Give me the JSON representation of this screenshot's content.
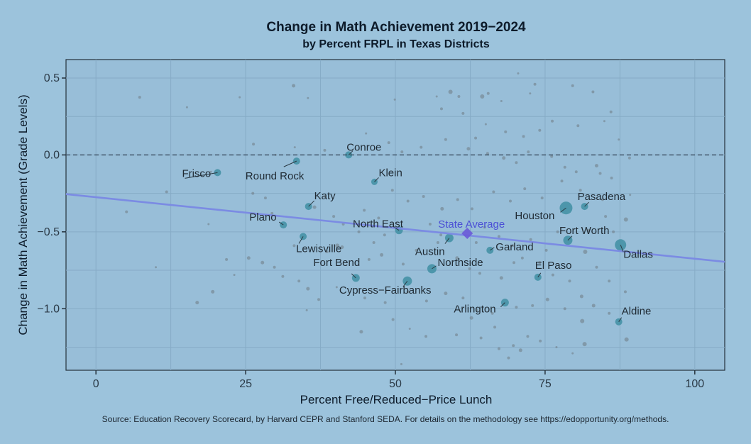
{
  "chart_data": {
    "type": "scatter",
    "title": "Change in Math Achievement 2019−2024",
    "subtitle": "by Percent FRPL in Texas Districts",
    "xlabel": "Percent Free/Reduced−Price Lunch",
    "ylabel": "Change in Math Achievement (Grade Levels)",
    "xlim": [
      -5,
      105
    ],
    "ylim": [
      -1.4,
      0.62
    ],
    "xticks": [
      0,
      25,
      50,
      75,
      100
    ],
    "xtick_labels": [
      "0",
      "25",
      "50",
      "75",
      "100"
    ],
    "yticks": [
      0.5,
      0.0,
      -0.5,
      -1.0
    ],
    "ytick_labels": [
      "0.5",
      "0.0",
      "−0.5",
      "−1.0"
    ],
    "reference_line_y": 0.0,
    "trend_line": {
      "x": [
        -5,
        105
      ],
      "y": [
        -0.255,
        -0.695
      ]
    },
    "state_average": {
      "label": "State Average",
      "x": 62,
      "y": -0.51
    },
    "highlighted_districts": [
      {
        "name": "Frisco",
        "x": 20.3,
        "y": -0.115,
        "size": 5
      },
      {
        "name": "Round Rock",
        "x": 33.5,
        "y": -0.04,
        "size": 5
      },
      {
        "name": "Conroe",
        "x": 42.2,
        "y": 0.0,
        "size": 5
      },
      {
        "name": "Klein",
        "x": 46.5,
        "y": -0.175,
        "size": 4.5
      },
      {
        "name": "Katy",
        "x": 35.5,
        "y": -0.335,
        "size": 5
      },
      {
        "name": "Plano",
        "x": 31.3,
        "y": -0.455,
        "size": 5
      },
      {
        "name": "Lewisville",
        "x": 34.6,
        "y": -0.53,
        "size": 5
      },
      {
        "name": "North East",
        "x": 50.6,
        "y": -0.49,
        "size": 5.5
      },
      {
        "name": "Austin",
        "x": 59.0,
        "y": -0.54,
        "size": 6
      },
      {
        "name": "Houston",
        "x": 78.5,
        "y": -0.345,
        "size": 9
      },
      {
        "name": "Pasadena",
        "x": 81.6,
        "y": -0.335,
        "size": 5
      },
      {
        "name": "Fort Worth",
        "x": 78.8,
        "y": -0.555,
        "size": 6.5
      },
      {
        "name": "Dallas",
        "x": 87.6,
        "y": -0.585,
        "size": 8
      },
      {
        "name": "Garland",
        "x": 65.8,
        "y": -0.62,
        "size": 5
      },
      {
        "name": "Northside",
        "x": 56.1,
        "y": -0.74,
        "size": 6.5
      },
      {
        "name": "Fort Bend",
        "x": 43.4,
        "y": -0.8,
        "size": 5.5
      },
      {
        "name": "Cypress−Fairbanks",
        "x": 52.0,
        "y": -0.82,
        "size": 6.5
      },
      {
        "name": "El Paso",
        "x": 73.8,
        "y": -0.795,
        "size": 5
      },
      {
        "name": "Arlington",
        "x": 68.3,
        "y": -0.96,
        "size": 5.5
      },
      {
        "name": "Aldine",
        "x": 87.3,
        "y": -1.085,
        "size": 5
      }
    ],
    "other_districts": [
      [
        7.3,
        0.375,
        2
      ],
      [
        15.2,
        0.31,
        1.5
      ],
      [
        24,
        0.375,
        1.5
      ],
      [
        33,
        0.45,
        2.5
      ],
      [
        35.4,
        0.37,
        1.5
      ],
      [
        49.9,
        0.36,
        1.5
      ],
      [
        59.2,
        0.41,
        3
      ],
      [
        60.6,
        0.38,
        2
      ],
      [
        64.5,
        0.38,
        3
      ],
      [
        65.5,
        0.4,
        2
      ],
      [
        70.5,
        0.53,
        1.5
      ],
      [
        73.3,
        0.46,
        2
      ],
      [
        79.6,
        0.45,
        2
      ],
      [
        83,
        0.41,
        2
      ],
      [
        86,
        0.28,
        2
      ],
      [
        57.7,
        0.3,
        2
      ],
      [
        61.3,
        0.27,
        2
      ],
      [
        56.9,
        0.38,
        1.5
      ],
      [
        67.7,
        0.35,
        1.5
      ],
      [
        72.5,
        0.4,
        1.5
      ],
      [
        26.3,
        0.07,
        2
      ],
      [
        30,
        0.0,
        1.5
      ],
      [
        33.2,
        0.05,
        1.5
      ],
      [
        38.2,
        0.03,
        2
      ],
      [
        45.1,
        0.14,
        1.5
      ],
      [
        48.9,
        0.08,
        2
      ],
      [
        51.1,
        0.02,
        2
      ],
      [
        54.3,
        0.05,
        2
      ],
      [
        58.4,
        0.1,
        2
      ],
      [
        63.4,
        0.11,
        2
      ],
      [
        65.1,
        0.2,
        1.5
      ],
      [
        68.4,
        0.15,
        2
      ],
      [
        71.4,
        0.12,
        2
      ],
      [
        74.1,
        0.16,
        2
      ],
      [
        76.2,
        0.22,
        2
      ],
      [
        80.5,
        0.19,
        2
      ],
      [
        84.9,
        0.22,
        1.5
      ],
      [
        87.3,
        0.1,
        1.5
      ],
      [
        89.1,
        -0.02,
        2
      ],
      [
        83.6,
        -0.07,
        2.5
      ],
      [
        62.2,
        0.04,
        2.5
      ],
      [
        65.4,
        0.01,
        2
      ],
      [
        68.1,
        -0.02,
        2.5
      ],
      [
        70.2,
        -0.05,
        2
      ],
      [
        72.2,
        0.02,
        2
      ],
      [
        76.1,
        -0.01,
        2
      ],
      [
        78.3,
        -0.08,
        2
      ],
      [
        80.2,
        -0.11,
        2
      ],
      [
        84.2,
        -0.12,
        2
      ],
      [
        86.1,
        -0.15,
        2
      ],
      [
        11.8,
        -0.24,
        2
      ],
      [
        5.1,
        -0.37,
        2
      ],
      [
        18.8,
        -0.45,
        1.5
      ],
      [
        19.2,
        -0.11,
        1.5
      ],
      [
        26.2,
        -0.25,
        2
      ],
      [
        28.3,
        -0.28,
        2
      ],
      [
        29.4,
        -0.38,
        2
      ],
      [
        36.5,
        -0.34,
        2.5
      ],
      [
        38.2,
        -0.27,
        2
      ],
      [
        39.7,
        -0.4,
        2
      ],
      [
        41.3,
        -0.45,
        2
      ],
      [
        44.8,
        -0.36,
        2
      ],
      [
        47.2,
        -0.41,
        2
      ],
      [
        49.5,
        -0.23,
        2
      ],
      [
        52.1,
        -0.3,
        2
      ],
      [
        54.7,
        -0.27,
        2
      ],
      [
        57.8,
        -0.35,
        2.5
      ],
      [
        60.4,
        -0.29,
        2
      ],
      [
        62.8,
        -0.35,
        2
      ],
      [
        66.4,
        -0.24,
        2
      ],
      [
        69.2,
        -0.3,
        2
      ],
      [
        71.6,
        -0.22,
        2
      ],
      [
        74.5,
        -0.28,
        2
      ],
      [
        77.8,
        -0.17,
        2
      ],
      [
        80.9,
        -0.23,
        2
      ],
      [
        84.6,
        -0.29,
        2
      ],
      [
        88.5,
        -0.42,
        3
      ],
      [
        89.2,
        -0.26,
        1.5
      ],
      [
        85.1,
        -0.4,
        2
      ],
      [
        86.4,
        -0.5,
        2
      ],
      [
        21.8,
        -0.68,
        2
      ],
      [
        23.1,
        -0.78,
        1.5
      ],
      [
        25.5,
        -0.67,
        2.5
      ],
      [
        27.8,
        -0.7,
        2.5
      ],
      [
        29.8,
        -0.73,
        2
      ],
      [
        33.1,
        -0.59,
        2
      ],
      [
        38.6,
        -0.63,
        2
      ],
      [
        41.1,
        -0.6,
        2.5
      ],
      [
        45.6,
        -0.68,
        2
      ],
      [
        47.7,
        -0.65,
        2.5
      ],
      [
        51.3,
        -0.71,
        2
      ],
      [
        53.5,
        -0.62,
        2
      ],
      [
        57.1,
        -0.57,
        2
      ],
      [
        60.3,
        -0.67,
        2.5
      ],
      [
        62.4,
        -0.74,
        2
      ],
      [
        64.1,
        -0.77,
        2
      ],
      [
        67.7,
        -0.8,
        2.5
      ],
      [
        69.8,
        -0.7,
        2
      ],
      [
        71.2,
        -0.67,
        2
      ],
      [
        74.1,
        -0.7,
        2
      ],
      [
        76.3,
        -0.78,
        2
      ],
      [
        79.1,
        -0.82,
        2
      ],
      [
        81.7,
        -0.63,
        3
      ],
      [
        83.6,
        -0.73,
        2
      ],
      [
        85.7,
        -0.82,
        2
      ],
      [
        19.5,
        -0.89,
        2.5
      ],
      [
        16.9,
        -0.96,
        2.5
      ],
      [
        10,
        -0.73,
        1.5
      ],
      [
        31.2,
        -0.79,
        2
      ],
      [
        33.9,
        -0.82,
        2
      ],
      [
        35.4,
        -0.87,
        2.5
      ],
      [
        37.2,
        -0.94,
        2
      ],
      [
        40.2,
        -0.86,
        1.5
      ],
      [
        44.9,
        -0.93,
        2
      ],
      [
        48.3,
        -0.96,
        2
      ],
      [
        52.1,
        -0.89,
        2
      ],
      [
        55.2,
        -0.95,
        2
      ],
      [
        58.4,
        -0.9,
        2.5
      ],
      [
        61.3,
        -0.93,
        2
      ],
      [
        63.6,
        -1.01,
        2
      ],
      [
        66.2,
        -1.03,
        2
      ],
      [
        70.2,
        -0.99,
        2
      ],
      [
        72.9,
        -0.98,
        2
      ],
      [
        75.4,
        -0.94,
        2.5
      ],
      [
        78.3,
        -1.0,
        2
      ],
      [
        81.1,
        -0.92,
        2.5
      ],
      [
        83.1,
        -0.98,
        2.5
      ],
      [
        85.7,
        -1.03,
        2
      ],
      [
        88.4,
        -0.89,
        2
      ],
      [
        81.2,
        -1.08,
        3
      ],
      [
        35.2,
        -1.01,
        1.5
      ],
      [
        44.3,
        -1.15,
        2.5
      ],
      [
        49.6,
        -1.07,
        2
      ],
      [
        52.4,
        -1.13,
        1.5
      ],
      [
        55.1,
        -1.18,
        2
      ],
      [
        60.2,
        -1.17,
        2
      ],
      [
        62.7,
        -1.06,
        2.5
      ],
      [
        64.3,
        -1.19,
        2
      ],
      [
        66.6,
        -1.12,
        2
      ],
      [
        67.3,
        -1.26,
        2
      ],
      [
        69.7,
        -1.24,
        2
      ],
      [
        70.9,
        -1.27,
        2.5
      ],
      [
        72.1,
        -1.18,
        2
      ],
      [
        74.2,
        -1.21,
        2
      ],
      [
        76.9,
        -1.25,
        1.5
      ],
      [
        79.6,
        -1.29,
        1.5
      ],
      [
        81.6,
        -1.23,
        3
      ],
      [
        88.6,
        -1.2,
        3
      ],
      [
        51,
        -1.36,
        1.5
      ],
      [
        68.9,
        -1.32,
        2
      ],
      [
        55.8,
        -0.45,
        2
      ],
      [
        57.6,
        -0.52,
        2
      ],
      [
        63.5,
        -0.57,
        2
      ],
      [
        64.9,
        -0.47,
        2
      ],
      [
        67.3,
        -0.53,
        2
      ],
      [
        69.6,
        -0.59,
        2
      ],
      [
        72.6,
        -0.55,
        2
      ],
      [
        75.2,
        -0.62,
        2
      ],
      [
        77.1,
        -0.5,
        2
      ],
      [
        82.2,
        -0.49,
        2
      ],
      [
        43.9,
        -0.5,
        2
      ],
      [
        46.4,
        -0.57,
        2
      ],
      [
        48.2,
        -0.52,
        2
      ],
      [
        40.3,
        -0.59,
        3
      ]
    ]
  }
}
